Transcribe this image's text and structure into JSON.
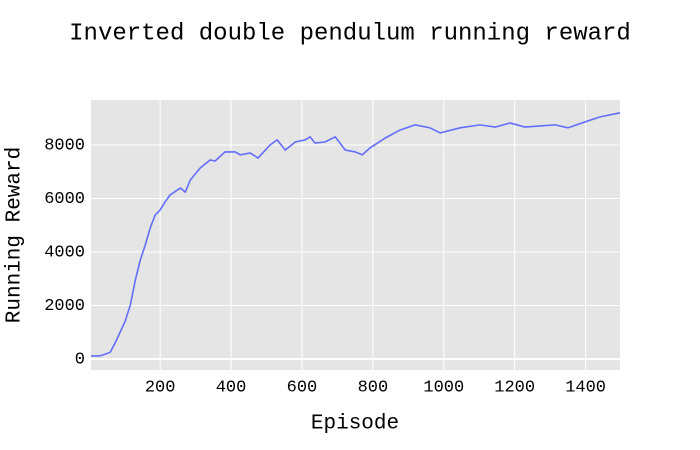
{
  "chart_data": {
    "type": "line",
    "title": "Inverted double pendulum running reward",
    "x_label": "Episode",
    "y_label": "Running Reward",
    "series": [
      {
        "color": "#636efa",
        "x": [
          5,
          31,
          59,
          73,
          87,
          101,
          116,
          130,
          144,
          158,
          172,
          186,
          200,
          214,
          228,
          257,
          271,
          285,
          313,
          341,
          355,
          383,
          412,
          426,
          454,
          476,
          510,
          530,
          553,
          581,
          609,
          623,
          637,
          665,
          694,
          722,
          750,
          770,
          792,
          835,
          877,
          919,
          961,
          990,
          1046,
          1102,
          1145,
          1187,
          1229,
          1271,
          1314,
          1350,
          1398,
          1441,
          1497
        ],
        "values": [
          110,
          120,
          250,
          600,
          1000,
          1400,
          2020,
          2950,
          3700,
          4260,
          4900,
          5380,
          5570,
          5870,
          6130,
          6390,
          6240,
          6690,
          7140,
          7440,
          7400,
          7740,
          7740,
          7630,
          7700,
          7510,
          8000,
          8190,
          7810,
          8110,
          8190,
          8300,
          8070,
          8110,
          8300,
          7810,
          7740,
          7630,
          7890,
          8260,
          8560,
          8750,
          8640,
          8450,
          8640,
          8750,
          8670,
          8820,
          8670,
          8710,
          8750,
          8640,
          8860,
          9050,
          9200
        ]
      }
    ],
    "xlim": [
      5,
      1497
    ],
    "ylim": [
      -410,
      9680
    ],
    "xticks": [
      200,
      400,
      600,
      800,
      1000,
      1200,
      1400
    ],
    "yticks": [
      0,
      2000,
      4000,
      6000,
      8000
    ],
    "grid": true
  }
}
